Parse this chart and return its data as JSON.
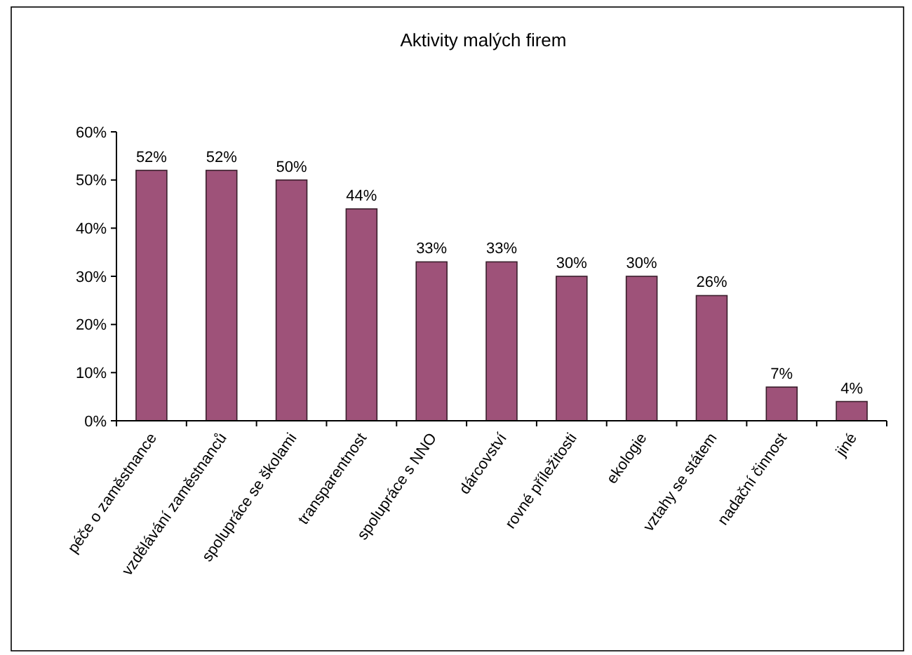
{
  "chart_data": {
    "type": "bar",
    "title": "Aktivity malých firem",
    "categories": [
      "péče o zaměstnance",
      "vzdělávání zaměstnanců",
      "spolupráce se školami",
      "transparentnost",
      "spolupráce s NNO",
      "dárcovství",
      "rovné příležitosti",
      "ekologie",
      "vztahy se státem",
      "nadační činnost",
      "jiné"
    ],
    "values": [
      52,
      52,
      50,
      44,
      33,
      33,
      30,
      30,
      26,
      7,
      4
    ],
    "value_labels": [
      "52%",
      "52%",
      "50%",
      "44%",
      "33%",
      "33%",
      "30%",
      "30%",
      "26%",
      "7%",
      "4%"
    ],
    "color": "#9e5279",
    "ylim": [
      0,
      60
    ],
    "yticks": [
      {
        "value": 0,
        "label": "0%"
      },
      {
        "value": 10,
        "label": "10%"
      },
      {
        "value": 20,
        "label": "20%"
      },
      {
        "value": 30,
        "label": "30%"
      },
      {
        "value": 40,
        "label": "40%"
      },
      {
        "value": 50,
        "label": "50%"
      },
      {
        "value": 60,
        "label": "60%"
      }
    ]
  }
}
